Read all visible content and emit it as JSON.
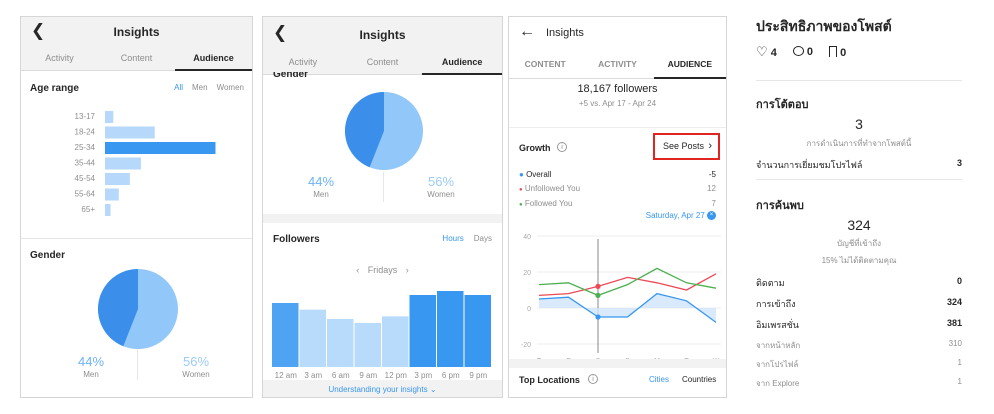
{
  "panel1": {
    "title": "Insights",
    "back_icon": "chevron-left-icon",
    "tabs": [
      "Activity",
      "Content",
      "Audience"
    ],
    "age_range": {
      "title": "Age range",
      "filters": [
        "All",
        "Men",
        "Women"
      ],
      "labels": [
        "13-17",
        "18-24",
        "25-34",
        "35-44",
        "45-54",
        "55-64",
        "65+"
      ],
      "values": [
        3,
        18,
        40,
        13,
        9,
        5,
        2
      ]
    },
    "gender": {
      "title": "Gender",
      "men_pct": "44%",
      "men_label": "Men",
      "women_pct": "56%",
      "women_label": "Women",
      "men_fraction": 0.44
    }
  },
  "panel2": {
    "title": "Insights",
    "back_icon": "chevron-left-icon",
    "tabs": [
      "Activity",
      "Content",
      "Audience"
    ],
    "gender": {
      "title": "Gender",
      "men_pct": "44%",
      "men_label": "Men",
      "women_pct": "56%",
      "women_label": "Women",
      "men_fraction": 0.44
    },
    "followers": {
      "title": "Followers",
      "toggle_hours": "Hours",
      "toggle_days": "Days",
      "day": "Fridays",
      "hours": [
        "12 am",
        "3 am",
        "6 am",
        "9 am",
        "12 pm",
        "3 pm",
        "6 pm",
        "9 pm"
      ],
      "values": [
        48,
        43,
        36,
        33,
        38,
        54,
        57,
        54
      ]
    },
    "footer_link": "Understanding your insights"
  },
  "panel3": {
    "title": "Insights",
    "back_icon": "arrow-left-icon",
    "tabs": [
      "CONTENT",
      "ACTIVITY",
      "AUDIENCE"
    ],
    "followers_count": "18,167 followers",
    "followers_change": "+5 vs. Apr 17 - Apr 24",
    "growth": {
      "title": "Growth",
      "see_posts": "See Posts",
      "legend": [
        {
          "label": "Overall",
          "value": "-5",
          "color": "#3897f0"
        },
        {
          "label": "Unfollowed You",
          "value": "12",
          "color": "#ed4956"
        },
        {
          "label": "Followed You",
          "value": "7",
          "color": "#4caf50"
        }
      ],
      "selected_date": "Saturday, Apr 27",
      "y_ticks": [
        "40",
        "20",
        "0",
        "-20"
      ],
      "x_ticks": [
        "T",
        "F",
        "S",
        "S",
        "M",
        "T",
        "W"
      ]
    },
    "top_locations": {
      "title": "Top Locations",
      "cities": "Cities",
      "countries": "Countries"
    }
  },
  "panel4": {
    "title": "ประสิทธิภาพของโพสต์",
    "stats": [
      {
        "icon": "heart-icon",
        "value": "4"
      },
      {
        "icon": "comment-icon",
        "value": "0"
      },
      {
        "icon": "bookmark-icon",
        "value": "0"
      }
    ],
    "interactions": {
      "title": "การโต้ตอบ",
      "number": "3",
      "subtitle": "การดำเนินการที่ทำจากโพสต์นี้",
      "row_label": "จำนวนการเยี่ยมชมโปรไฟล์",
      "row_value": "3"
    },
    "discovery": {
      "title": "การค้นพบ",
      "number": "324",
      "subtitle": "บัญชีที่เข้าถึง",
      "note": "15% ไม่ได้ติดตามคุณ",
      "rows": [
        {
          "label": "ติดตาม",
          "value": "0",
          "bold": true
        },
        {
          "label": "การเข้าถึง",
          "value": "324",
          "bold": true
        },
        {
          "label": "อิมเพรสชั่น",
          "value": "381",
          "bold": true
        },
        {
          "label": "จากหน้าหลัก",
          "value": "310",
          "bold": false
        },
        {
          "label": "จากโปรไฟล์",
          "value": "1",
          "bold": false
        },
        {
          "label": "จาก Explore",
          "value": "1",
          "bold": false
        }
      ]
    }
  },
  "chart_data": [
    {
      "type": "bar",
      "title": "Age range",
      "categories": [
        "13-17",
        "18-24",
        "25-34",
        "35-44",
        "45-54",
        "55-64",
        "65+"
      ],
      "values": [
        3,
        18,
        40,
        13,
        9,
        5,
        2
      ]
    },
    {
      "type": "pie",
      "title": "Gender",
      "categories": [
        "Men",
        "Women"
      ],
      "values": [
        44,
        56
      ]
    },
    {
      "type": "bar",
      "title": "Followers",
      "categories": [
        "12 am",
        "3 am",
        "6 am",
        "9 am",
        "12 pm",
        "3 pm",
        "6 pm",
        "9 pm"
      ],
      "values": [
        48,
        43,
        36,
        33,
        38,
        54,
        57,
        54
      ]
    },
    {
      "type": "line",
      "title": "Growth",
      "x": [
        "T",
        "F",
        "S",
        "S",
        "M",
        "T",
        "W"
      ],
      "ylim": [
        -25,
        45
      ],
      "series": [
        {
          "name": "Overall",
          "values": [
            5,
            6,
            -5,
            -5,
            8,
            4,
            -8
          ]
        },
        {
          "name": "Unfollowed You",
          "values": [
            7,
            8,
            12,
            17,
            14,
            10,
            19
          ]
        },
        {
          "name": "Followed You",
          "values": [
            13,
            14,
            7,
            13,
            22,
            14,
            11
          ]
        }
      ]
    }
  ]
}
